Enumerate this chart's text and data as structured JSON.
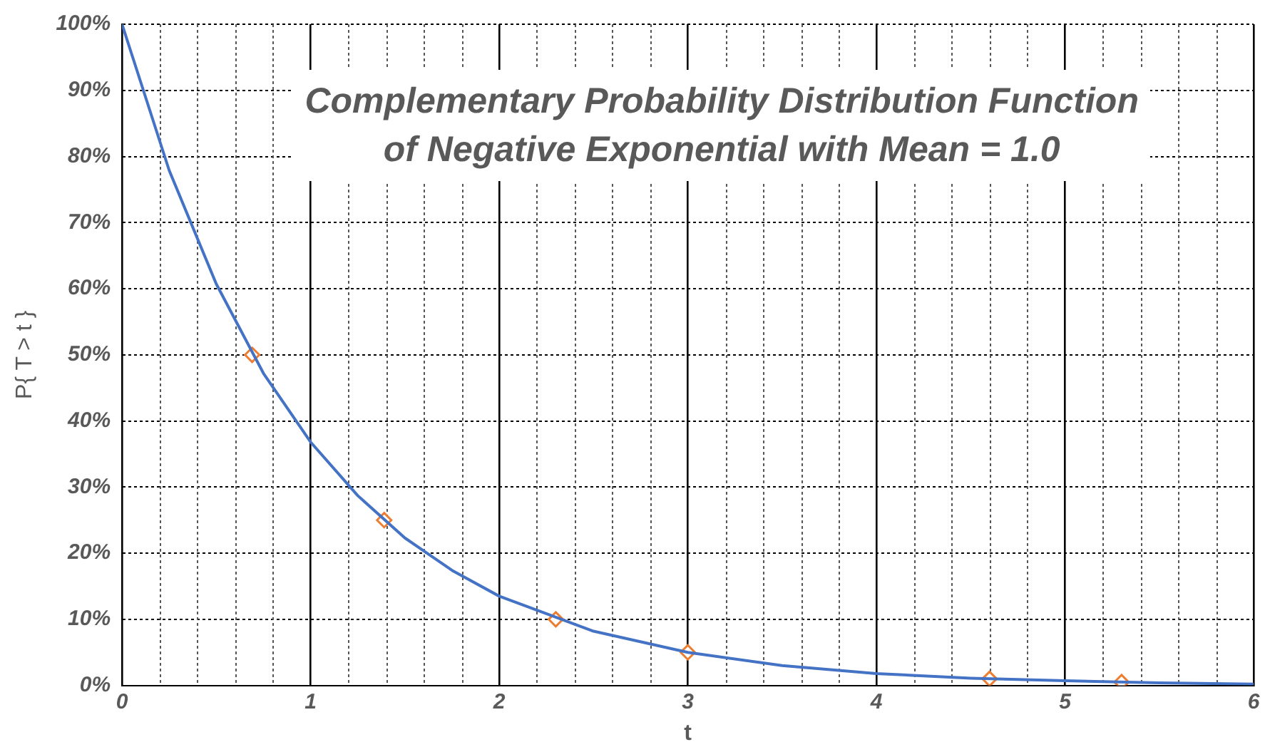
{
  "chart_data": {
    "type": "line",
    "title": "Complementary Probability Distribution Function of Negative Exponential with Mean = 1.0",
    "xlabel": "t",
    "ylabel": "P{ T > t }",
    "series": [
      {
        "type": "line",
        "color": "#4472c4",
        "marker": "none",
        "x": [
          0,
          0.25,
          0.5,
          0.75,
          1,
          1.25,
          1.5,
          1.75,
          2,
          2.5,
          3,
          3.5,
          4,
          4.5,
          5,
          5.5,
          6
        ],
        "values": [
          100,
          77.9,
          60.7,
          47.2,
          36.8,
          28.7,
          22.3,
          17.4,
          13.5,
          8.2,
          5.0,
          3.0,
          1.8,
          1.1,
          0.7,
          0.4,
          0.2
        ]
      },
      {
        "type": "scatter",
        "color": "#ed7d31",
        "marker": "diamond",
        "x": [
          0.69,
          1.39,
          2.3,
          3.0,
          4.6,
          5.3
        ],
        "values": [
          50,
          25,
          10,
          5,
          1,
          0.5
        ]
      }
    ],
    "xlim": [
      0,
      6
    ],
    "xticks": [
      0,
      1,
      2,
      3,
      4,
      5,
      6
    ],
    "ylim": [
      0,
      100
    ],
    "yticks": [
      {
        "value": 0,
        "label": "0%"
      },
      {
        "value": 10,
        "label": "10%"
      },
      {
        "value": 20,
        "label": "20%"
      },
      {
        "value": 30,
        "label": "30%"
      },
      {
        "value": 40,
        "label": "40%"
      },
      {
        "value": 50,
        "label": "50%"
      },
      {
        "value": 60,
        "label": "60%"
      },
      {
        "value": 70,
        "label": "70%"
      },
      {
        "value": 80,
        "label": "80%"
      },
      {
        "value": 90,
        "label": "90%"
      },
      {
        "value": 100,
        "label": "100%"
      }
    ],
    "grid": true
  }
}
